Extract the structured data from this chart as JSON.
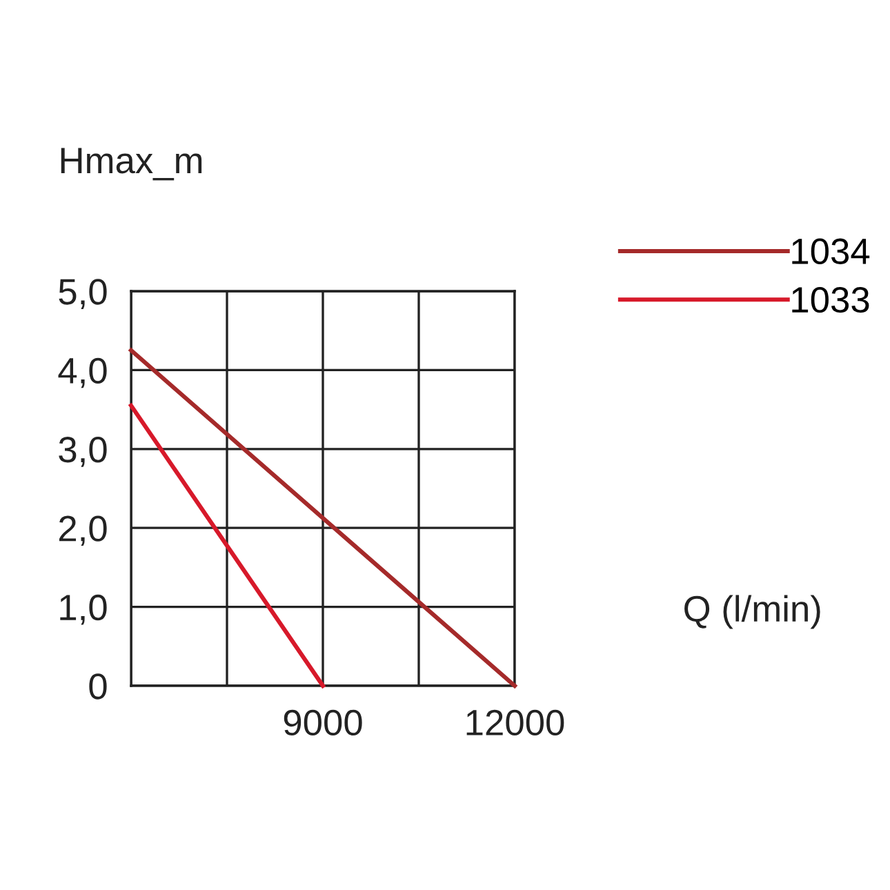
{
  "chart_data": {
    "type": "line",
    "xlabel": "Q (l/min)",
    "ylabel": "Hmax_m",
    "series": [
      {
        "name": "1034",
        "color": "#a52a2a",
        "x": [
          6000,
          12000
        ],
        "values": [
          4.25,
          0
        ]
      },
      {
        "name": "1033",
        "color": "#d7192a",
        "x": [
          6000,
          9000
        ],
        "values": [
          3.55,
          0
        ]
      }
    ],
    "xlim": [
      6000,
      12000
    ],
    "xticks": [
      {
        "value": 6000,
        "label": null
      },
      {
        "value": 7500,
        "label": null
      },
      9000,
      {
        "value": 10500,
        "label": null
      },
      12000
    ],
    "ylim": [
      0,
      5
    ],
    "yticks": [
      0,
      {
        "value": 1,
        "label": "1,0"
      },
      {
        "value": 2,
        "label": "2,0"
      },
      {
        "value": 3,
        "label": "3,0"
      },
      {
        "value": 4,
        "label": "4,0"
      },
      {
        "value": 5,
        "label": "5,0"
      }
    ],
    "grid": true,
    "legend": "top right",
    "marker": "none",
    "line_style": "solid"
  }
}
